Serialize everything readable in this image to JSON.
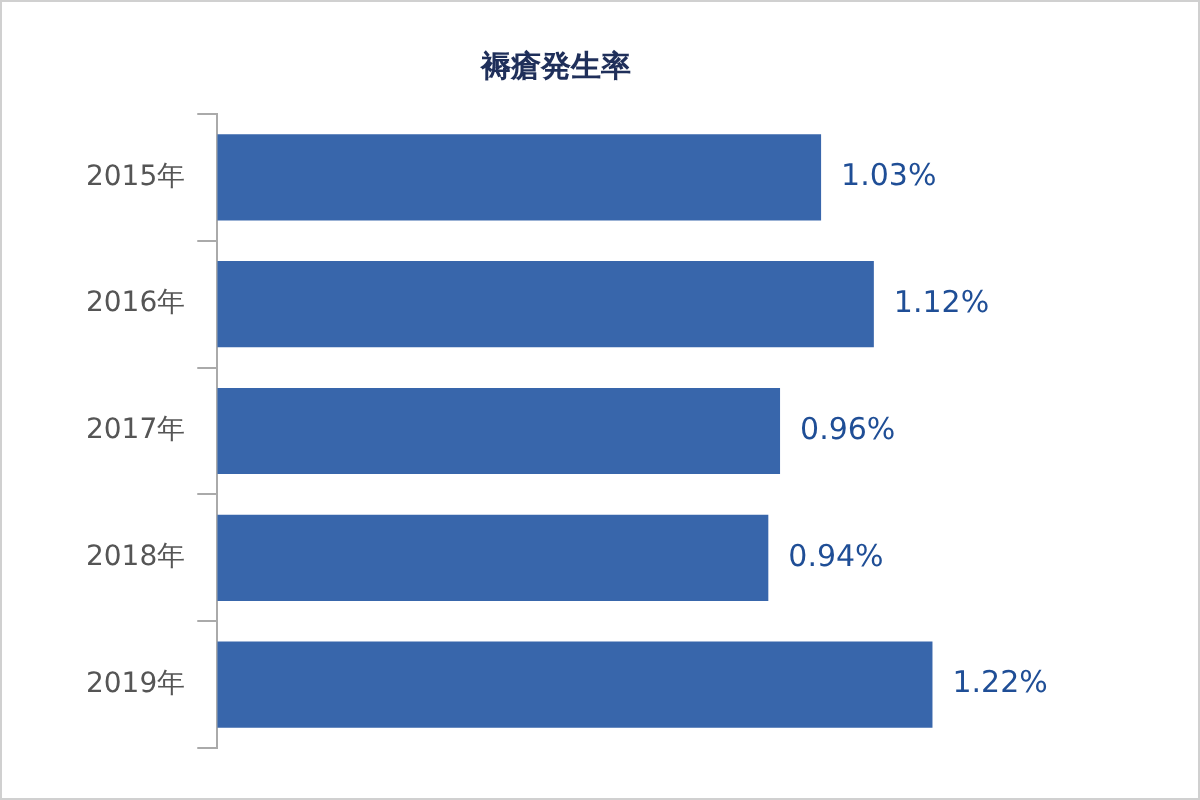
{
  "chart_data": {
    "type": "bar",
    "orientation": "horizontal",
    "title": "褥瘡発生率",
    "categories": [
      "2015年",
      "2016年",
      "2017年",
      "2018年",
      "2019年"
    ],
    "values": [
      1.03,
      1.12,
      0.96,
      0.94,
      1.22
    ],
    "value_labels": [
      "1.03%",
      "1.12%",
      "0.96%",
      "0.94%",
      "1.22%"
    ],
    "color": "#3866ab",
    "tick_labels": "y"
  }
}
